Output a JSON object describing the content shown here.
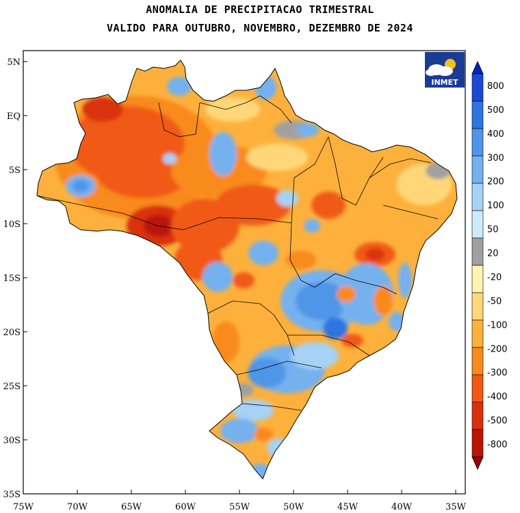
{
  "title": {
    "line1": "ANOMALIA DE PRECIPITACAO TRIMESTRAL",
    "line2": "VALIDO PARA OUTUBRO, NOVEMBRO, DEZEMBRO DE 2024"
  },
  "logo": {
    "text": "INMET",
    "icon": "cloud-sun-icon"
  },
  "axes": {
    "lat_ticks": [
      "5N",
      "EQ",
      "5S",
      "10S",
      "15S",
      "20S",
      "25S",
      "30S",
      "35S"
    ],
    "lon_ticks": [
      "75W",
      "70W",
      "65W",
      "60W",
      "55W",
      "50W",
      "45W",
      "40W",
      "35W"
    ]
  },
  "colorbar": {
    "labels": [
      "800",
      "500",
      "400",
      "300",
      "200",
      "100",
      "50",
      "20",
      "-20",
      "-50",
      "-100",
      "-200",
      "-300",
      "-400",
      "-500",
      "-800"
    ],
    "colors": [
      "#0a22b8",
      "#1b49d6",
      "#2f74e0",
      "#4f95e8",
      "#74b1ee",
      "#a5d2f5",
      "#cdebfb",
      "#a0a0a0",
      "#fff4b0",
      "#ffd779",
      "#fdb13c",
      "#f98a1e",
      "#f05a14",
      "#d9300e",
      "#b81507",
      "#960404"
    ]
  }
}
